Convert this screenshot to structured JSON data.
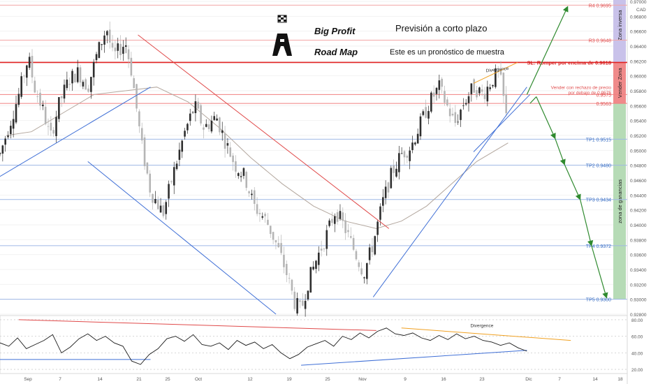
{
  "header": {
    "brand_line1": "Big Profit",
    "brand_line2": "Road Map",
    "title": "Previsión a corto plazo",
    "subtitle": "Este es un pronóstico de muestra"
  },
  "zones": {
    "inverse": "Zona inversa",
    "sell": "Vender Zona",
    "profit": "zona de ganancias"
  },
  "colors": {
    "candle_up": "#2e2e2e",
    "candle_down": "#b5b5b5",
    "level_line": "#f3a6a6",
    "tp_line": "#9fb8e6",
    "red_line": "#e02020",
    "trend_blue": "#3f6fd6",
    "trend_red": "#e04a4a",
    "arrow_green": "#2f8a2f",
    "zone_inverse": "#c9c2ea",
    "zone_sell": "#f08a8a",
    "zone_profit": "#b6dbb6",
    "divergence": "#f0a020"
  },
  "chart_data": [
    {
      "type": "candlestick",
      "symbol_currency": "CAD",
      "ylim": [
        0.928,
        0.97
      ],
      "x_tick_labels": [
        "Sep",
        "7",
        "14",
        "21",
        "25",
        "Oct",
        "12",
        "19",
        "25",
        "Nov",
        "9",
        "16",
        "23",
        "Dic",
        "7",
        "14",
        "18"
      ],
      "y_ticks": [
        0.97,
        0.968,
        0.966,
        0.964,
        0.962,
        0.96,
        0.958,
        0.956,
        0.954,
        0.952,
        0.95,
        0.948,
        0.946,
        0.944,
        0.942,
        0.94,
        0.938,
        0.936,
        0.934,
        0.932,
        0.93,
        0.928
      ],
      "y_tick_labels": [
        "0.97000",
        "0.96800",
        "0.96600",
        "0.96400",
        "0.96200",
        "0.96000",
        "0.95800",
        "0.95600",
        "0.95400",
        "0.95200",
        "0.95000",
        "0.94800",
        "0.94600",
        "0.94400",
        "0.94200",
        "0.94000",
        "0.93800",
        "0.93600",
        "0.93400",
        "0.93200",
        "0.93000",
        "0.92800"
      ],
      "price_path": [
        [
          0.0,
          0.9495
        ],
        [
          0.015,
          0.9535
        ],
        [
          0.03,
          0.9575
        ],
        [
          0.045,
          0.9625
        ],
        [
          0.055,
          0.9585
        ],
        [
          0.07,
          0.955
        ],
        [
          0.08,
          0.9515
        ],
        [
          0.095,
          0.9565
        ],
        [
          0.11,
          0.9595
        ],
        [
          0.125,
          0.9605
        ],
        [
          0.14,
          0.9585
        ],
        [
          0.155,
          0.963
        ],
        [
          0.17,
          0.9665
        ],
        [
          0.18,
          0.9625
        ],
        [
          0.2,
          0.9645
        ],
        [
          0.21,
          0.9605
        ],
        [
          0.225,
          0.951
        ],
        [
          0.24,
          0.9445
        ],
        [
          0.26,
          0.9415
        ],
        [
          0.275,
          0.9465
        ],
        [
          0.295,
          0.9525
        ],
        [
          0.31,
          0.956
        ],
        [
          0.325,
          0.953
        ],
        [
          0.345,
          0.9545
        ],
        [
          0.36,
          0.951
        ],
        [
          0.375,
          0.948
        ],
        [
          0.39,
          0.9465
        ],
        [
          0.405,
          0.9425
        ],
        [
          0.425,
          0.9405
        ],
        [
          0.44,
          0.9375
        ],
        [
          0.455,
          0.934
        ],
        [
          0.47,
          0.9295
        ],
        [
          0.48,
          0.9285
        ],
        [
          0.49,
          0.932
        ],
        [
          0.505,
          0.9355
        ],
        [
          0.52,
          0.9385
        ],
        [
          0.535,
          0.942
        ],
        [
          0.55,
          0.9395
        ],
        [
          0.565,
          0.9365
        ],
        [
          0.58,
          0.9335
        ],
        [
          0.595,
          0.9375
        ],
        [
          0.61,
          0.943
        ],
        [
          0.625,
          0.947
        ],
        [
          0.64,
          0.9495
        ],
        [
          0.655,
          0.9505
        ],
        [
          0.67,
          0.9535
        ],
        [
          0.685,
          0.9565
        ],
        [
          0.7,
          0.9585
        ],
        [
          0.715,
          0.9555
        ],
        [
          0.725,
          0.9535
        ],
        [
          0.74,
          0.9565
        ],
        [
          0.755,
          0.9585
        ],
        [
          0.77,
          0.9575
        ],
        [
          0.785,
          0.9595
        ],
        [
          0.795,
          0.9605
        ],
        [
          0.8,
          0.9585
        ],
        [
          0.807,
          0.9545
        ]
      ],
      "moving_average": [
        [
          0.01,
          0.952
        ],
        [
          0.05,
          0.9525
        ],
        [
          0.1,
          0.955
        ],
        [
          0.15,
          0.9575
        ],
        [
          0.2,
          0.958
        ],
        [
          0.25,
          0.9585
        ],
        [
          0.3,
          0.9565
        ],
        [
          0.35,
          0.953
        ],
        [
          0.4,
          0.949
        ],
        [
          0.45,
          0.9455
        ],
        [
          0.5,
          0.9425
        ],
        [
          0.55,
          0.9405
        ],
        [
          0.6,
          0.9395
        ],
        [
          0.64,
          0.9405
        ],
        [
          0.68,
          0.9425
        ],
        [
          0.72,
          0.9455
        ],
        [
          0.76,
          0.9485
        ],
        [
          0.81,
          0.951
        ]
      ],
      "levels": [
        {
          "label": "R4 0.9695",
          "value": 0.9695,
          "kind": "resistance"
        },
        {
          "label": "R3 0.9648",
          "value": 0.9648,
          "kind": "resistance"
        },
        {
          "label": "SL: Romper por encima de 0.9618",
          "value": 0.9618,
          "kind": "stop"
        },
        {
          "label": "0.9575",
          "value": 0.9575,
          "kind": "entry"
        },
        {
          "label": "0.9563",
          "value": 0.9563,
          "kind": "entry"
        },
        {
          "label": "TP1 0.9515",
          "value": 0.9515,
          "kind": "target"
        },
        {
          "label": "TP2 0.9480",
          "value": 0.948,
          "kind": "target"
        },
        {
          "label": "TP3 0.9434",
          "value": 0.9434,
          "kind": "target"
        },
        {
          "label": "TP4 0.9372",
          "value": 0.9372,
          "kind": "target"
        },
        {
          "label": "TP5 0.9300",
          "value": 0.93,
          "kind": "target"
        }
      ],
      "entry_note_line1": "Vender con rechazo de precio",
      "entry_note_line2": "por debajo de 0.9575",
      "annotation": "Divergence"
    },
    {
      "type": "line",
      "name": "oscillator",
      "ylim": [
        15,
        85
      ],
      "y_ticks": [
        80,
        60,
        40,
        20
      ],
      "y_tick_labels": [
        "80.00",
        "60.00",
        "40.00",
        "20.00"
      ],
      "values": [
        52,
        48,
        58,
        45,
        50,
        55,
        62,
        40,
        47,
        57,
        63,
        55,
        60,
        52,
        48,
        30,
        26,
        38,
        45,
        57,
        60,
        54,
        62,
        50,
        48,
        52,
        44,
        55,
        49,
        53,
        45,
        50,
        40,
        33,
        38,
        47,
        51,
        55,
        48,
        60,
        56,
        64,
        58,
        66,
        70,
        63,
        61,
        64,
        58,
        55,
        61,
        56,
        63,
        57,
        60,
        55,
        53,
        49,
        52,
        46,
        42
      ],
      "annotation": "Divergence"
    }
  ]
}
